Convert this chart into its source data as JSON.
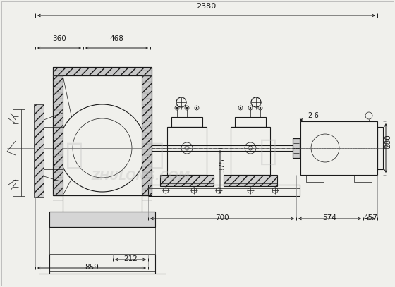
{
  "bg_color": "#f0f0ec",
  "line_color": "#1a1a1a",
  "lw": 0.8,
  "lw_thin": 0.5,
  "lw_thick": 1.2,
  "fig_w": 5.6,
  "fig_h": 4.07,
  "dpi": 100,
  "dims": {
    "total_width": "2380",
    "d360": "360",
    "d468": "468",
    "d2_6": "2-6",
    "d280": "280",
    "d700": "700",
    "d574": "574",
    "d457": "457",
    "d859": "859",
    "d212": "212",
    "d375": "375"
  },
  "wm_chars": [
    "筑",
    "龙",
    "网"
  ],
  "wm_latin": "ZHULONG.COM",
  "wm_color": "#bbbbbb",
  "wm_alpha": 0.35
}
